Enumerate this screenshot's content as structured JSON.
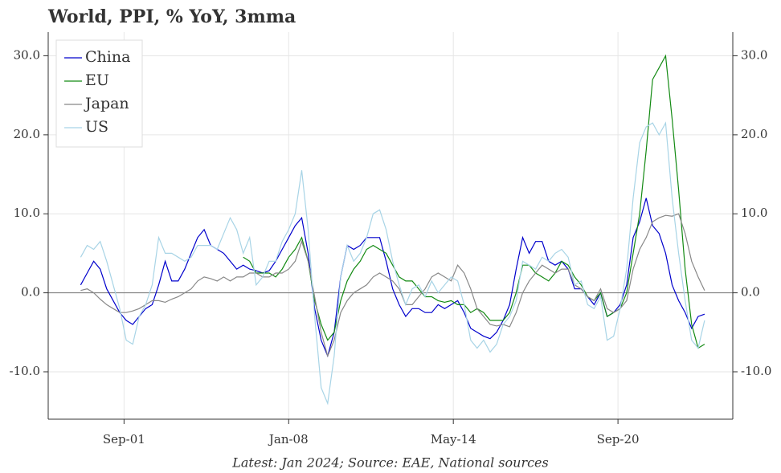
{
  "chart_data": {
    "type": "line",
    "title": "World, PPI, % YoY, 3mma",
    "footnote": "Latest: Jan 2024; Source: EAE, National sources",
    "x": [
      "2000-01",
      "2000-04",
      "2000-07",
      "2000-10",
      "2001-01",
      "2001-04",
      "2001-07",
      "2001-10",
      "2002-01",
      "2002-04",
      "2002-07",
      "2002-10",
      "2003-01",
      "2003-04",
      "2003-07",
      "2003-10",
      "2004-01",
      "2004-04",
      "2004-07",
      "2004-10",
      "2005-01",
      "2005-04",
      "2005-07",
      "2005-10",
      "2006-01",
      "2006-04",
      "2006-07",
      "2006-10",
      "2007-01",
      "2007-04",
      "2007-07",
      "2007-10",
      "2008-01",
      "2008-04",
      "2008-07",
      "2008-10",
      "2009-01",
      "2009-04",
      "2009-07",
      "2009-10",
      "2010-01",
      "2010-04",
      "2010-07",
      "2010-10",
      "2011-01",
      "2011-04",
      "2011-07",
      "2011-10",
      "2012-01",
      "2012-04",
      "2012-07",
      "2012-10",
      "2013-01",
      "2013-04",
      "2013-07",
      "2013-10",
      "2014-01",
      "2014-04",
      "2014-07",
      "2014-10",
      "2015-01",
      "2015-04",
      "2015-07",
      "2015-10",
      "2016-01",
      "2016-04",
      "2016-07",
      "2016-10",
      "2017-01",
      "2017-04",
      "2017-07",
      "2017-10",
      "2018-01",
      "2018-04",
      "2018-07",
      "2018-10",
      "2019-01",
      "2019-04",
      "2019-07",
      "2019-10",
      "2020-01",
      "2020-04",
      "2020-07",
      "2020-10",
      "2021-01",
      "2021-04",
      "2021-07",
      "2021-10",
      "2022-01",
      "2022-04",
      "2022-07",
      "2022-10",
      "2023-01",
      "2023-04",
      "2023-07",
      "2023-10",
      "2024-01"
    ],
    "series": [
      {
        "name": "China",
        "color": "#0000cc",
        "values": [
          1,
          2.5,
          4,
          3,
          0.5,
          -1,
          -2.5,
          -3.5,
          -4,
          -3,
          -2,
          -1.5,
          1,
          4,
          1.5,
          1.5,
          3,
          5,
          7,
          8,
          6,
          5.5,
          5,
          4,
          3,
          3.5,
          3,
          2.8,
          2.5,
          2.8,
          4,
          5.5,
          7,
          8.5,
          9.5,
          5,
          -2,
          -6,
          -8,
          -5,
          2,
          6,
          5.5,
          6,
          7,
          7,
          7,
          4,
          0.5,
          -1.5,
          -3,
          -2,
          -2,
          -2.5,
          -2.5,
          -1.5,
          -2,
          -1.5,
          -1,
          -2.5,
          -4.5,
          -5,
          -5.5,
          -5.8,
          -5,
          -3.5,
          -1.5,
          3,
          7,
          5,
          6.5,
          6.5,
          4,
          3.5,
          4,
          3,
          0.5,
          0.5,
          -0.5,
          -1.5,
          0,
          -3,
          -2.5,
          -1.5,
          1,
          7,
          9,
          12,
          8.5,
          7.5,
          5,
          1,
          -1,
          -2.5,
          -4.5,
          -3,
          -2.7
        ]
      },
      {
        "name": "EU",
        "color": "#138a13",
        "values": [
          null,
          null,
          null,
          null,
          null,
          null,
          null,
          null,
          null,
          null,
          null,
          null,
          null,
          null,
          null,
          null,
          null,
          null,
          null,
          null,
          null,
          null,
          null,
          null,
          null,
          4.5,
          4,
          2.5,
          2.5,
          2.5,
          2,
          3,
          4.5,
          5.5,
          7,
          4,
          -1,
          -4,
          -6,
          -5,
          -1,
          1.5,
          3,
          4,
          5.5,
          6,
          5.5,
          5,
          3.5,
          2,
          1.5,
          1.5,
          0.5,
          -0.5,
          -0.5,
          -1,
          -1.2,
          -1,
          -1.5,
          -1.5,
          -2.5,
          -2,
          -2.5,
          -3.5,
          -3.5,
          -3.5,
          -2.5,
          0,
          3.5,
          3.5,
          2.5,
          2,
          1.5,
          2.5,
          4,
          3.5,
          2,
          1,
          -0.5,
          -1,
          0,
          -3,
          -2.5,
          -2,
          0,
          5,
          10,
          18,
          27,
          28.5,
          30,
          22,
          13,
          3,
          -4,
          -7,
          -6.5
        ]
      },
      {
        "name": "Japan",
        "color": "#888888",
        "values": [
          0.3,
          0.5,
          0,
          -0.8,
          -1.5,
          -2,
          -2.5,
          -2.5,
          -2.3,
          -2,
          -1.5,
          -1,
          -1,
          -1.2,
          -0.8,
          -0.5,
          0,
          0.5,
          1.5,
          2,
          1.8,
          1.5,
          2,
          1.5,
          2,
          2,
          2.5,
          2.5,
          2,
          2,
          2.5,
          2.5,
          3,
          4,
          6.5,
          4,
          -0.5,
          -5,
          -8,
          -6,
          -2.5,
          -1,
          0,
          0.5,
          1,
          2,
          2.5,
          2,
          1.5,
          0.5,
          -1.5,
          -1.5,
          -0.5,
          0.5,
          2,
          2.5,
          2,
          1.5,
          3.5,
          2.5,
          0.5,
          -2,
          -3,
          -4,
          -4.2,
          -4,
          -4.3,
          -2.5,
          0,
          1.5,
          2.5,
          3.5,
          3,
          2.5,
          3,
          3,
          1,
          0.5,
          -0.5,
          -1,
          0.5,
          -2,
          -2.5,
          -2,
          -1,
          3,
          5.5,
          7,
          9,
          9.5,
          9.8,
          9.7,
          10,
          7.5,
          4,
          2,
          0.3
        ]
      },
      {
        "name": "US",
        "color": "#a8d4e6",
        "values": [
          4.5,
          6,
          5.5,
          6.5,
          4,
          1,
          -2,
          -6,
          -6.5,
          -3,
          -1.5,
          1,
          7,
          5,
          5,
          4.5,
          4,
          4.5,
          6,
          6,
          6,
          5.5,
          7.5,
          9.5,
          8,
          5,
          7,
          1,
          2,
          4,
          4,
          6.5,
          8,
          10,
          15.5,
          8,
          -3,
          -12,
          -14,
          -8,
          2,
          6,
          4,
          5,
          7,
          10,
          10.5,
          8,
          4,
          1,
          -1.5,
          0.5,
          1,
          -0.5,
          1.5,
          0,
          1,
          2,
          1.5,
          -1.5,
          -6,
          -7,
          -6,
          -7.5,
          -6.5,
          -4,
          -3,
          -1,
          4,
          3.5,
          3,
          4.5,
          4,
          5,
          5.5,
          4.5,
          1,
          1.5,
          -1.5,
          -2,
          -0.5,
          -6,
          -5.5,
          -2,
          3,
          12,
          19,
          21,
          21.5,
          20,
          21.5,
          12,
          5,
          -1,
          -6,
          -7,
          -3.5
        ]
      }
    ],
    "xlim": [
      "1998-10",
      "2025-02"
    ],
    "xticks": [
      {
        "value": "2001-09",
        "label": "Sep-01"
      },
      {
        "value": "2008-01",
        "label": "Jan-08"
      },
      {
        "value": "2014-05",
        "label": "May-14"
      },
      {
        "value": "2020-09",
        "label": "Sep-20"
      }
    ],
    "ylim": [
      -16,
      33
    ],
    "yticks": [
      {
        "value": -10,
        "label": "-10.0"
      },
      {
        "value": 0,
        "label": "0.0"
      },
      {
        "value": 10,
        "label": "10.0"
      },
      {
        "value": 20,
        "label": "20.0"
      },
      {
        "value": 30,
        "label": "30.0"
      }
    ],
    "y2lim": [
      -16,
      33
    ],
    "grid": true,
    "legend": "upper left"
  }
}
